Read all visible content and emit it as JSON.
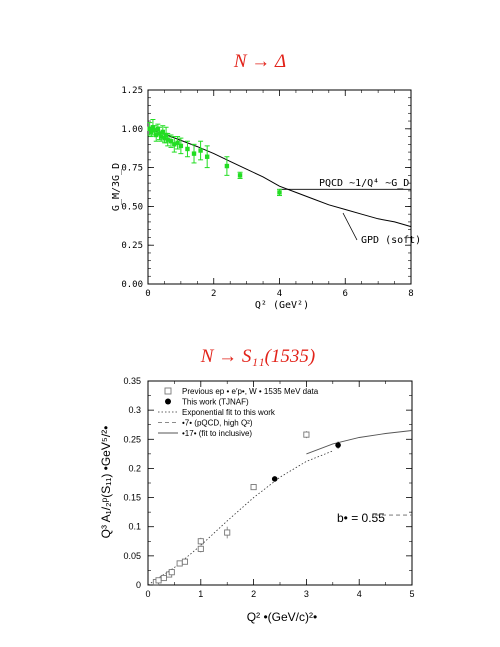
{
  "chart_data": [
    {
      "type": "scatter",
      "title": "N → Δ",
      "xlabel": "Q² (GeV²)",
      "ylabel": "G_M/3G_D",
      "xlim": [
        0,
        8
      ],
      "ylim": [
        0,
        1.25
      ],
      "xticks": [
        "0",
        "2",
        "4",
        "6",
        "8"
      ],
      "yticks": [
        "0.00",
        "0.25",
        "0.50",
        "0.75",
        "1.00",
        "1.25"
      ],
      "series": [
        {
          "kind": "points",
          "color": "#22dd22",
          "points": [
            {
              "x": 0.05,
              "y": 1.0,
              "err": 0.04
            },
            {
              "x": 0.1,
              "y": 0.98,
              "err": 0.03
            },
            {
              "x": 0.15,
              "y": 1.01,
              "err": 0.05
            },
            {
              "x": 0.2,
              "y": 0.99,
              "err": 0.03
            },
            {
              "x": 0.25,
              "y": 0.96,
              "err": 0.04
            },
            {
              "x": 0.3,
              "y": 1.0,
              "err": 0.03
            },
            {
              "x": 0.35,
              "y": 0.97,
              "err": 0.04
            },
            {
              "x": 0.4,
              "y": 0.95,
              "err": 0.03
            },
            {
              "x": 0.45,
              "y": 0.98,
              "err": 0.04
            },
            {
              "x": 0.5,
              "y": 0.94,
              "err": 0.03
            },
            {
              "x": 0.55,
              "y": 0.96,
              "err": 0.05
            },
            {
              "x": 0.6,
              "y": 0.93,
              "err": 0.04
            },
            {
              "x": 0.7,
              "y": 0.92,
              "err": 0.04
            },
            {
              "x": 0.8,
              "y": 0.9,
              "err": 0.05
            },
            {
              "x": 0.9,
              "y": 0.91,
              "err": 0.04
            },
            {
              "x": 1.0,
              "y": 0.89,
              "err": 0.05
            },
            {
              "x": 1.2,
              "y": 0.87,
              "err": 0.05
            },
            {
              "x": 1.4,
              "y": 0.84,
              "err": 0.06
            },
            {
              "x": 1.6,
              "y": 0.86,
              "err": 0.06
            },
            {
              "x": 1.8,
              "y": 0.82,
              "err": 0.07
            },
            {
              "x": 2.4,
              "y": 0.76,
              "err": 0.06
            },
            {
              "x": 2.8,
              "y": 0.7,
              "err": 0.02
            },
            {
              "x": 4.0,
              "y": 0.59,
              "err": 0.02
            }
          ]
        },
        {
          "kind": "curve",
          "label": "GPD (soft)",
          "x": [
            0,
            0.5,
            1,
            1.5,
            2,
            2.5,
            3,
            3.5,
            4,
            4.5,
            5,
            5.5,
            6,
            6.5,
            7,
            7.5,
            8
          ],
          "y": [
            1.0,
            0.965,
            0.925,
            0.885,
            0.84,
            0.79,
            0.74,
            0.69,
            0.63,
            0.59,
            0.55,
            0.51,
            0.48,
            0.45,
            0.42,
            0.4,
            0.37
          ]
        },
        {
          "kind": "line",
          "label": "PQCD ~1/Q⁴ ~G_D",
          "x": [
            4,
            8
          ],
          "y": [
            0.61,
            0.61
          ]
        }
      ]
    },
    {
      "type": "scatter",
      "title": "N → S₁₁(1535)",
      "xlabel": "Q² •(GeV/c)²•",
      "ylabel": "Q³ A₁/₂ᵖ(S₁₁) •GeV⁵/²•",
      "xlim": [
        0,
        5
      ],
      "ylim": [
        0,
        0.35
      ],
      "xticks": [
        "0",
        "1",
        "2",
        "3",
        "4",
        "5"
      ],
      "yticks": [
        "0",
        "0.05",
        "0.1",
        "0.15",
        "0.2",
        "0.25",
        "0.3",
        "0.35"
      ],
      "annotation": "b• = 0.55",
      "legend": [
        "Previous ep • e′p•, W • 1535 MeV data",
        "This work (TJNAF)",
        "Exponential fit to this work",
        "•7• (pQCD, high Q²)",
        "•17• (fit to inclusive)"
      ],
      "series": [
        {
          "name": "Previous ep • e′p•, W • 1535 MeV data",
          "kind": "open-squares",
          "points": [
            {
              "x": 0.15,
              "y": 0.005,
              "err": 0.002
            },
            {
              "x": 0.2,
              "y": 0.008,
              "err": 0.002
            },
            {
              "x": 0.3,
              "y": 0.012,
              "err": 0.002
            },
            {
              "x": 0.4,
              "y": 0.018,
              "err": 0.003
            },
            {
              "x": 0.45,
              "y": 0.022,
              "err": 0.003
            },
            {
              "x": 0.6,
              "y": 0.037,
              "err": 0.004
            },
            {
              "x": 0.7,
              "y": 0.04,
              "err": 0.004
            },
            {
              "x": 1.0,
              "y": 0.062,
              "err": 0.006
            },
            {
              "x": 1.0,
              "y": 0.075,
              "err": 0.006
            },
            {
              "x": 1.5,
              "y": 0.09,
              "err": 0.01
            },
            {
              "x": 2.0,
              "y": 0.168,
              "err": 0.005
            },
            {
              "x": 3.0,
              "y": 0.258,
              "err": 0.006
            }
          ]
        },
        {
          "name": "This work (TJNAF)",
          "kind": "filled-circles",
          "points": [
            {
              "x": 2.4,
              "y": 0.182,
              "err": 0.004
            },
            {
              "x": 3.6,
              "y": 0.24,
              "err": 0.006
            }
          ]
        },
        {
          "name": "Exponential fit to this work",
          "kind": "dotted",
          "x": [
            0,
            0.5,
            1,
            1.5,
            2,
            2.5,
            3,
            3.5
          ],
          "y": [
            0.0,
            0.03,
            0.068,
            0.11,
            0.15,
            0.185,
            0.212,
            0.23
          ]
        },
        {
          "name": "•7• (pQCD, high Q²)",
          "kind": "dashed",
          "x": [
            4.3,
            5.0
          ],
          "y": [
            0.12,
            0.12
          ]
        },
        {
          "name": "•17• (fit to inclusive)",
          "kind": "solid",
          "x": [
            3.0,
            3.5,
            4.0,
            4.5,
            5.0
          ],
          "y": [
            0.225,
            0.242,
            0.253,
            0.26,
            0.265
          ]
        }
      ]
    }
  ]
}
